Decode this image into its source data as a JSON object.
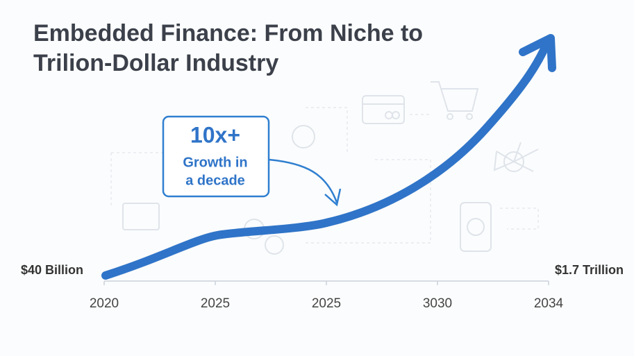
{
  "chart_data": {
    "type": "line",
    "title": [
      "Embedded Finance: From Niche to",
      "Trilion-Dollar Industry"
    ],
    "categories": [
      "2020",
      "2025",
      "2025",
      "3030",
      "2034"
    ],
    "annotations": [
      "$40 Billion",
      "$1.7 Trillion"
    ],
    "callout": [
      "10x+",
      "Growth in",
      "a decade"
    ],
    "color": "#2f74c8"
  }
}
